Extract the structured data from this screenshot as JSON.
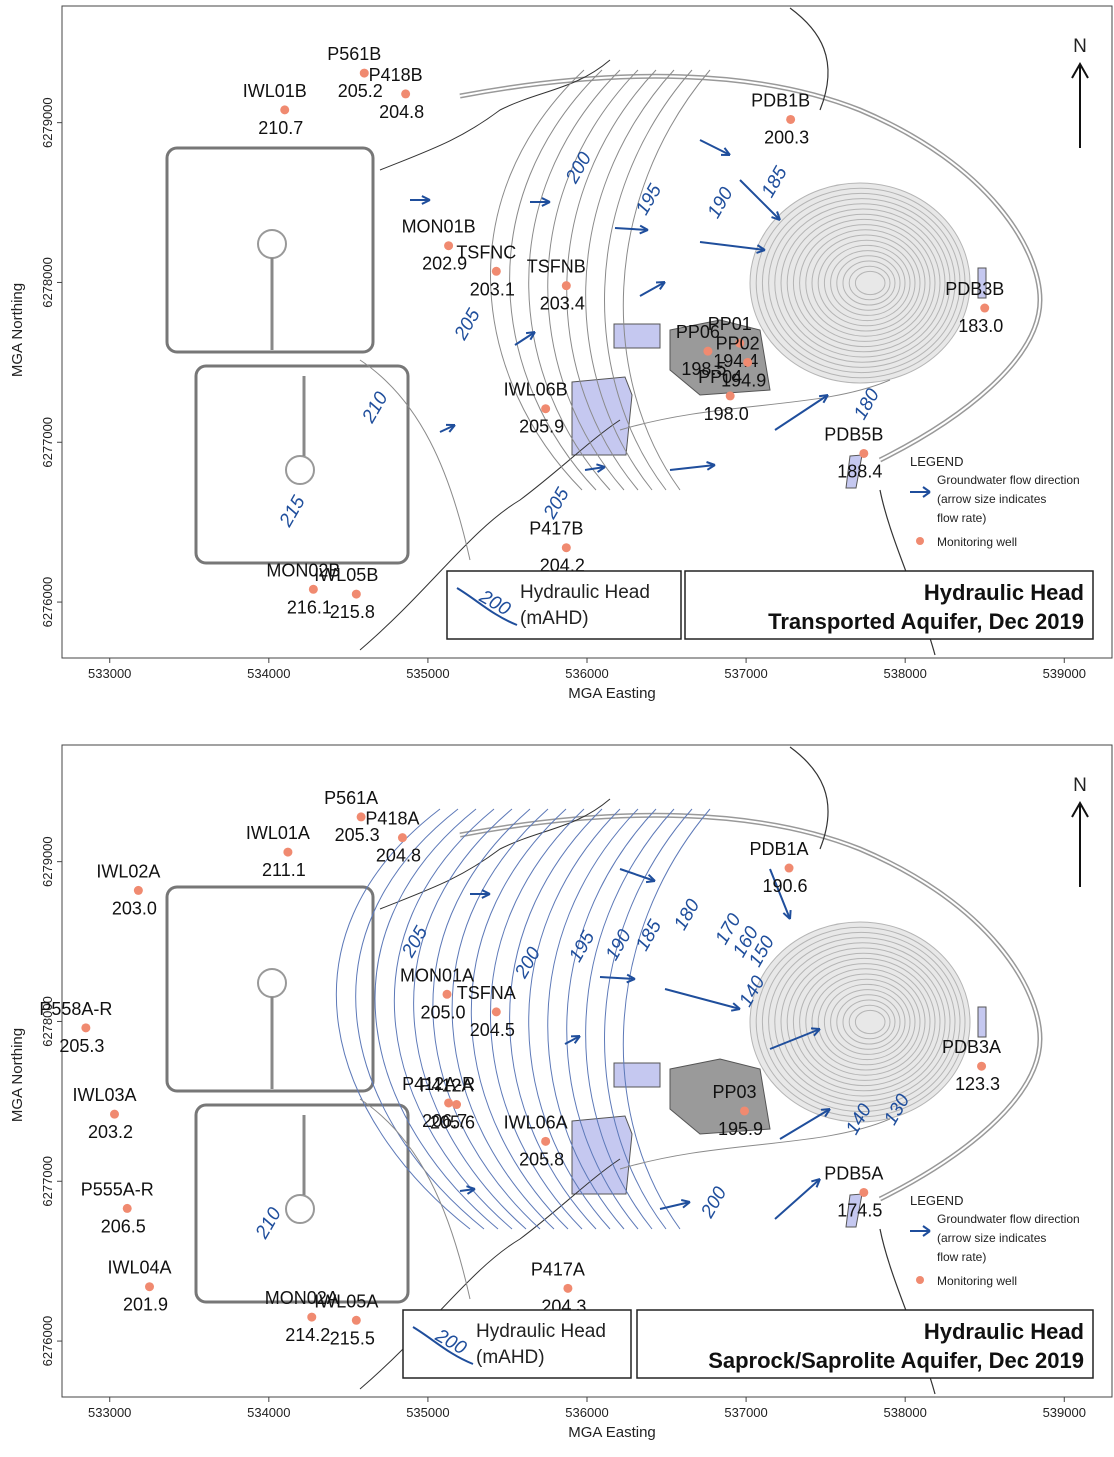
{
  "panels": [
    {
      "id": "transported",
      "title_line1": "Hydraulic Head",
      "title_line2": "Transported Aquifer, Dec 2019",
      "head_legend": "Hydraulic Head",
      "head_unit": "(mAHD)",
      "head_sample": "200",
      "legend": {
        "heading": "LEGEND",
        "flow": "Groundwater flow direction",
        "flow_note1": "(arrow size indicates",
        "flow_note2": "flow rate)",
        "well": "Monitoring well"
      },
      "x_ticks": [
        "533000",
        "534000",
        "535000",
        "536000",
        "537000",
        "538000",
        "539000"
      ],
      "y_ticks": [
        "6279000",
        "6278000",
        "6277000",
        "6276000"
      ],
      "x_label": "MGA Easting",
      "y_label": "MGA Northing",
      "north": "N",
      "wells": [
        {
          "name": "P561B",
          "value": "205.2",
          "e": 534600,
          "n": 6279310
        },
        {
          "name": "IWL01B",
          "value": "210.7",
          "e": 534100,
          "n": 6279080
        },
        {
          "name": "P418B",
          "value": "204.8",
          "e": 534860,
          "n": 6279180
        },
        {
          "name": "PDB1B",
          "value": "200.3",
          "e": 537280,
          "n": 6279020
        },
        {
          "name": "MON01B",
          "value": "202.9",
          "e": 535130,
          "n": 6278230
        },
        {
          "name": "TSFNC",
          "value": "203.1",
          "e": 535430,
          "n": 6278070
        },
        {
          "name": "TSFNB",
          "value": "203.4",
          "e": 535870,
          "n": 6277980
        },
        {
          "name": "PDB3B",
          "value": "183.0",
          "e": 538500,
          "n": 6277840
        },
        {
          "name": "PP01",
          "value": "194.4",
          "e": 536960,
          "n": 6277620
        },
        {
          "name": "PP06",
          "value": "198.5",
          "e": 536760,
          "n": 6277570
        },
        {
          "name": "PP02",
          "value": "194.9",
          "e": 537010,
          "n": 6277500
        },
        {
          "name": "PP04",
          "value": "198.0",
          "e": 536900,
          "n": 6277290
        },
        {
          "name": "IWL06B",
          "value": "205.9",
          "e": 535740,
          "n": 6277210
        },
        {
          "name": "PDB5B",
          "value": "188.4",
          "e": 537740,
          "n": 6276930
        },
        {
          "name": "P417B",
          "value": "204.2",
          "e": 535870,
          "n": 6276340
        },
        {
          "name": "MON02B",
          "value": "216.1",
          "e": 534280,
          "n": 6276080
        },
        {
          "name": "IWL05B",
          "value": "215.8",
          "e": 534550,
          "n": 6276050
        }
      ],
      "contour_labels": [
        {
          "text": "200",
          "e": 535980,
          "n": 6278700
        },
        {
          "text": "195",
          "e": 536420,
          "n": 6278500
        },
        {
          "text": "190",
          "e": 536870,
          "n": 6278480
        },
        {
          "text": "185",
          "e": 537210,
          "n": 6278610
        },
        {
          "text": "205",
          "e": 535280,
          "n": 6277720
        },
        {
          "text": "210",
          "e": 534700,
          "n": 6277200
        },
        {
          "text": "180",
          "e": 537790,
          "n": 6277220
        },
        {
          "text": "205",
          "e": 535840,
          "n": 6276600
        },
        {
          "text": "215",
          "e": 534180,
          "n": 6276550
        }
      ]
    },
    {
      "id": "saprock",
      "title_line1": "Hydraulic Head",
      "title_line2": "Saprock/Saprolite Aquifer, Dec 2019",
      "head_legend": "Hydraulic Head",
      "head_unit": "(mAHD)",
      "head_sample": "200",
      "legend": {
        "heading": "LEGEND",
        "flow": "Groundwater flow direction",
        "flow_note1": "(arrow size indicates",
        "flow_note2": "flow rate)",
        "well": "Monitoring well"
      },
      "x_ticks": [
        "533000",
        "534000",
        "535000",
        "536000",
        "537000",
        "538000",
        "539000"
      ],
      "y_ticks": [
        "6279000",
        "6278000",
        "6277000",
        "6276000"
      ],
      "x_label": "MGA Easting",
      "y_label": "MGA Northing",
      "north": "N",
      "wells": [
        {
          "name": "P561A",
          "value": "205.3",
          "e": 534580,
          "n": 6279280
        },
        {
          "name": "IWL01A",
          "value": "211.1",
          "e": 534120,
          "n": 6279060
        },
        {
          "name": "P418A",
          "value": "204.8",
          "e": 534840,
          "n": 6279150
        },
        {
          "name": "IWL02A",
          "value": "203.0",
          "e": 533180,
          "n": 6278820
        },
        {
          "name": "PDB1A",
          "value": "190.6",
          "e": 537270,
          "n": 6278960
        },
        {
          "name": "MON01A",
          "value": "205.0",
          "e": 535120,
          "n": 6278170
        },
        {
          "name": "TSFNA",
          "value": "204.5",
          "e": 535430,
          "n": 6278060
        },
        {
          "name": "P558A-R",
          "value": "205.3",
          "e": 532850,
          "n": 6277960
        },
        {
          "name": "PDB3A",
          "value": "123.3",
          "e": 538480,
          "n": 6277720
        },
        {
          "name": "IWL03A",
          "value": "203.2",
          "e": 533030,
          "n": 6277420
        },
        {
          "name": "P412A-R",
          "value": "206.7",
          "e": 535130,
          "n": 6277490
        },
        {
          "name": "P412A",
          "value": "205.6",
          "e": 535180,
          "n": 6277480
        },
        {
          "name": "PP03",
          "value": "195.9",
          "e": 536990,
          "n": 6277440
        },
        {
          "name": "IWL06A",
          "value": "205.8",
          "e": 535740,
          "n": 6277250
        },
        {
          "name": "PDB5A",
          "value": "174.5",
          "e": 537740,
          "n": 6276930
        },
        {
          "name": "P555A-R",
          "value": "206.5",
          "e": 533110,
          "n": 6276830
        },
        {
          "name": "IWL04A",
          "value": "201.9",
          "e": 533250,
          "n": 6276340
        },
        {
          "name": "P417A",
          "value": "204.3",
          "e": 535880,
          "n": 6276330
        },
        {
          "name": "MON02A",
          "value": "214.2",
          "e": 534270,
          "n": 6276150
        },
        {
          "name": "IWL05A",
          "value": "215.5",
          "e": 534550,
          "n": 6276130
        }
      ],
      "contour_labels": [
        {
          "text": "205",
          "e": 534950,
          "n": 6278480
        },
        {
          "text": "200",
          "e": 535660,
          "n": 6278350
        },
        {
          "text": "195",
          "e": 536000,
          "n": 6278450
        },
        {
          "text": "190",
          "e": 536230,
          "n": 6278460
        },
        {
          "text": "185",
          "e": 536420,
          "n": 6278520
        },
        {
          "text": "180",
          "e": 536660,
          "n": 6278650
        },
        {
          "text": "170",
          "e": 536920,
          "n": 6278560
        },
        {
          "text": "160",
          "e": 537030,
          "n": 6278480
        },
        {
          "text": "150",
          "e": 537130,
          "n": 6278420
        },
        {
          "text": "140",
          "e": 537070,
          "n": 6278170
        },
        {
          "text": "140",
          "e": 537740,
          "n": 6277370
        },
        {
          "text": "130",
          "e": 537980,
          "n": 6277430
        },
        {
          "text": "200",
          "e": 536830,
          "n": 6276850
        },
        {
          "text": "210",
          "e": 534030,
          "n": 6276720
        }
      ]
    }
  ]
}
